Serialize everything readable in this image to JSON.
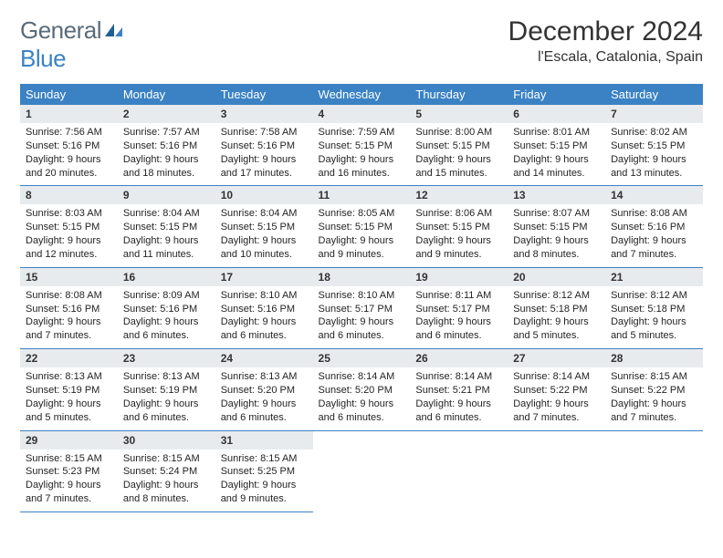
{
  "brand": {
    "part1": "General",
    "part2": "Blue"
  },
  "title": "December 2024",
  "location": "l'Escala, Catalonia, Spain",
  "colors": {
    "accent": "#3b82c4",
    "header_text": "#ffffff",
    "daynum_bg": "#e8ebed",
    "text": "#242424",
    "rule": "#3b82c4"
  },
  "font": {
    "family": "Arial",
    "title_size": 30,
    "location_size": 16,
    "header_size": 13,
    "daynum_size": 12,
    "info_size": 11
  },
  "dayNames": [
    "Sunday",
    "Monday",
    "Tuesday",
    "Wednesday",
    "Thursday",
    "Friday",
    "Saturday"
  ],
  "weeks": [
    [
      {
        "d": "1",
        "sr": "7:56 AM",
        "ss": "5:16 PM",
        "dl": "9 hours and 20 minutes."
      },
      {
        "d": "2",
        "sr": "7:57 AM",
        "ss": "5:16 PM",
        "dl": "9 hours and 18 minutes."
      },
      {
        "d": "3",
        "sr": "7:58 AM",
        "ss": "5:16 PM",
        "dl": "9 hours and 17 minutes."
      },
      {
        "d": "4",
        "sr": "7:59 AM",
        "ss": "5:15 PM",
        "dl": "9 hours and 16 minutes."
      },
      {
        "d": "5",
        "sr": "8:00 AM",
        "ss": "5:15 PM",
        "dl": "9 hours and 15 minutes."
      },
      {
        "d": "6",
        "sr": "8:01 AM",
        "ss": "5:15 PM",
        "dl": "9 hours and 14 minutes."
      },
      {
        "d": "7",
        "sr": "8:02 AM",
        "ss": "5:15 PM",
        "dl": "9 hours and 13 minutes."
      }
    ],
    [
      {
        "d": "8",
        "sr": "8:03 AM",
        "ss": "5:15 PM",
        "dl": "9 hours and 12 minutes."
      },
      {
        "d": "9",
        "sr": "8:04 AM",
        "ss": "5:15 PM",
        "dl": "9 hours and 11 minutes."
      },
      {
        "d": "10",
        "sr": "8:04 AM",
        "ss": "5:15 PM",
        "dl": "9 hours and 10 minutes."
      },
      {
        "d": "11",
        "sr": "8:05 AM",
        "ss": "5:15 PM",
        "dl": "9 hours and 9 minutes."
      },
      {
        "d": "12",
        "sr": "8:06 AM",
        "ss": "5:15 PM",
        "dl": "9 hours and 9 minutes."
      },
      {
        "d": "13",
        "sr": "8:07 AM",
        "ss": "5:15 PM",
        "dl": "9 hours and 8 minutes."
      },
      {
        "d": "14",
        "sr": "8:08 AM",
        "ss": "5:16 PM",
        "dl": "9 hours and 7 minutes."
      }
    ],
    [
      {
        "d": "15",
        "sr": "8:08 AM",
        "ss": "5:16 PM",
        "dl": "9 hours and 7 minutes."
      },
      {
        "d": "16",
        "sr": "8:09 AM",
        "ss": "5:16 PM",
        "dl": "9 hours and 6 minutes."
      },
      {
        "d": "17",
        "sr": "8:10 AM",
        "ss": "5:16 PM",
        "dl": "9 hours and 6 minutes."
      },
      {
        "d": "18",
        "sr": "8:10 AM",
        "ss": "5:17 PM",
        "dl": "9 hours and 6 minutes."
      },
      {
        "d": "19",
        "sr": "8:11 AM",
        "ss": "5:17 PM",
        "dl": "9 hours and 6 minutes."
      },
      {
        "d": "20",
        "sr": "8:12 AM",
        "ss": "5:18 PM",
        "dl": "9 hours and 5 minutes."
      },
      {
        "d": "21",
        "sr": "8:12 AM",
        "ss": "5:18 PM",
        "dl": "9 hours and 5 minutes."
      }
    ],
    [
      {
        "d": "22",
        "sr": "8:13 AM",
        "ss": "5:19 PM",
        "dl": "9 hours and 5 minutes."
      },
      {
        "d": "23",
        "sr": "8:13 AM",
        "ss": "5:19 PM",
        "dl": "9 hours and 6 minutes."
      },
      {
        "d": "24",
        "sr": "8:13 AM",
        "ss": "5:20 PM",
        "dl": "9 hours and 6 minutes."
      },
      {
        "d": "25",
        "sr": "8:14 AM",
        "ss": "5:20 PM",
        "dl": "9 hours and 6 minutes."
      },
      {
        "d": "26",
        "sr": "8:14 AM",
        "ss": "5:21 PM",
        "dl": "9 hours and 6 minutes."
      },
      {
        "d": "27",
        "sr": "8:14 AM",
        "ss": "5:22 PM",
        "dl": "9 hours and 7 minutes."
      },
      {
        "d": "28",
        "sr": "8:15 AM",
        "ss": "5:22 PM",
        "dl": "9 hours and 7 minutes."
      }
    ],
    [
      {
        "d": "29",
        "sr": "8:15 AM",
        "ss": "5:23 PM",
        "dl": "9 hours and 7 minutes."
      },
      {
        "d": "30",
        "sr": "8:15 AM",
        "ss": "5:24 PM",
        "dl": "9 hours and 8 minutes."
      },
      {
        "d": "31",
        "sr": "8:15 AM",
        "ss": "5:25 PM",
        "dl": "9 hours and 9 minutes."
      },
      null,
      null,
      null,
      null
    ]
  ],
  "labels": {
    "sunrise": "Sunrise:",
    "sunset": "Sunset:",
    "daylight": "Daylight:"
  }
}
